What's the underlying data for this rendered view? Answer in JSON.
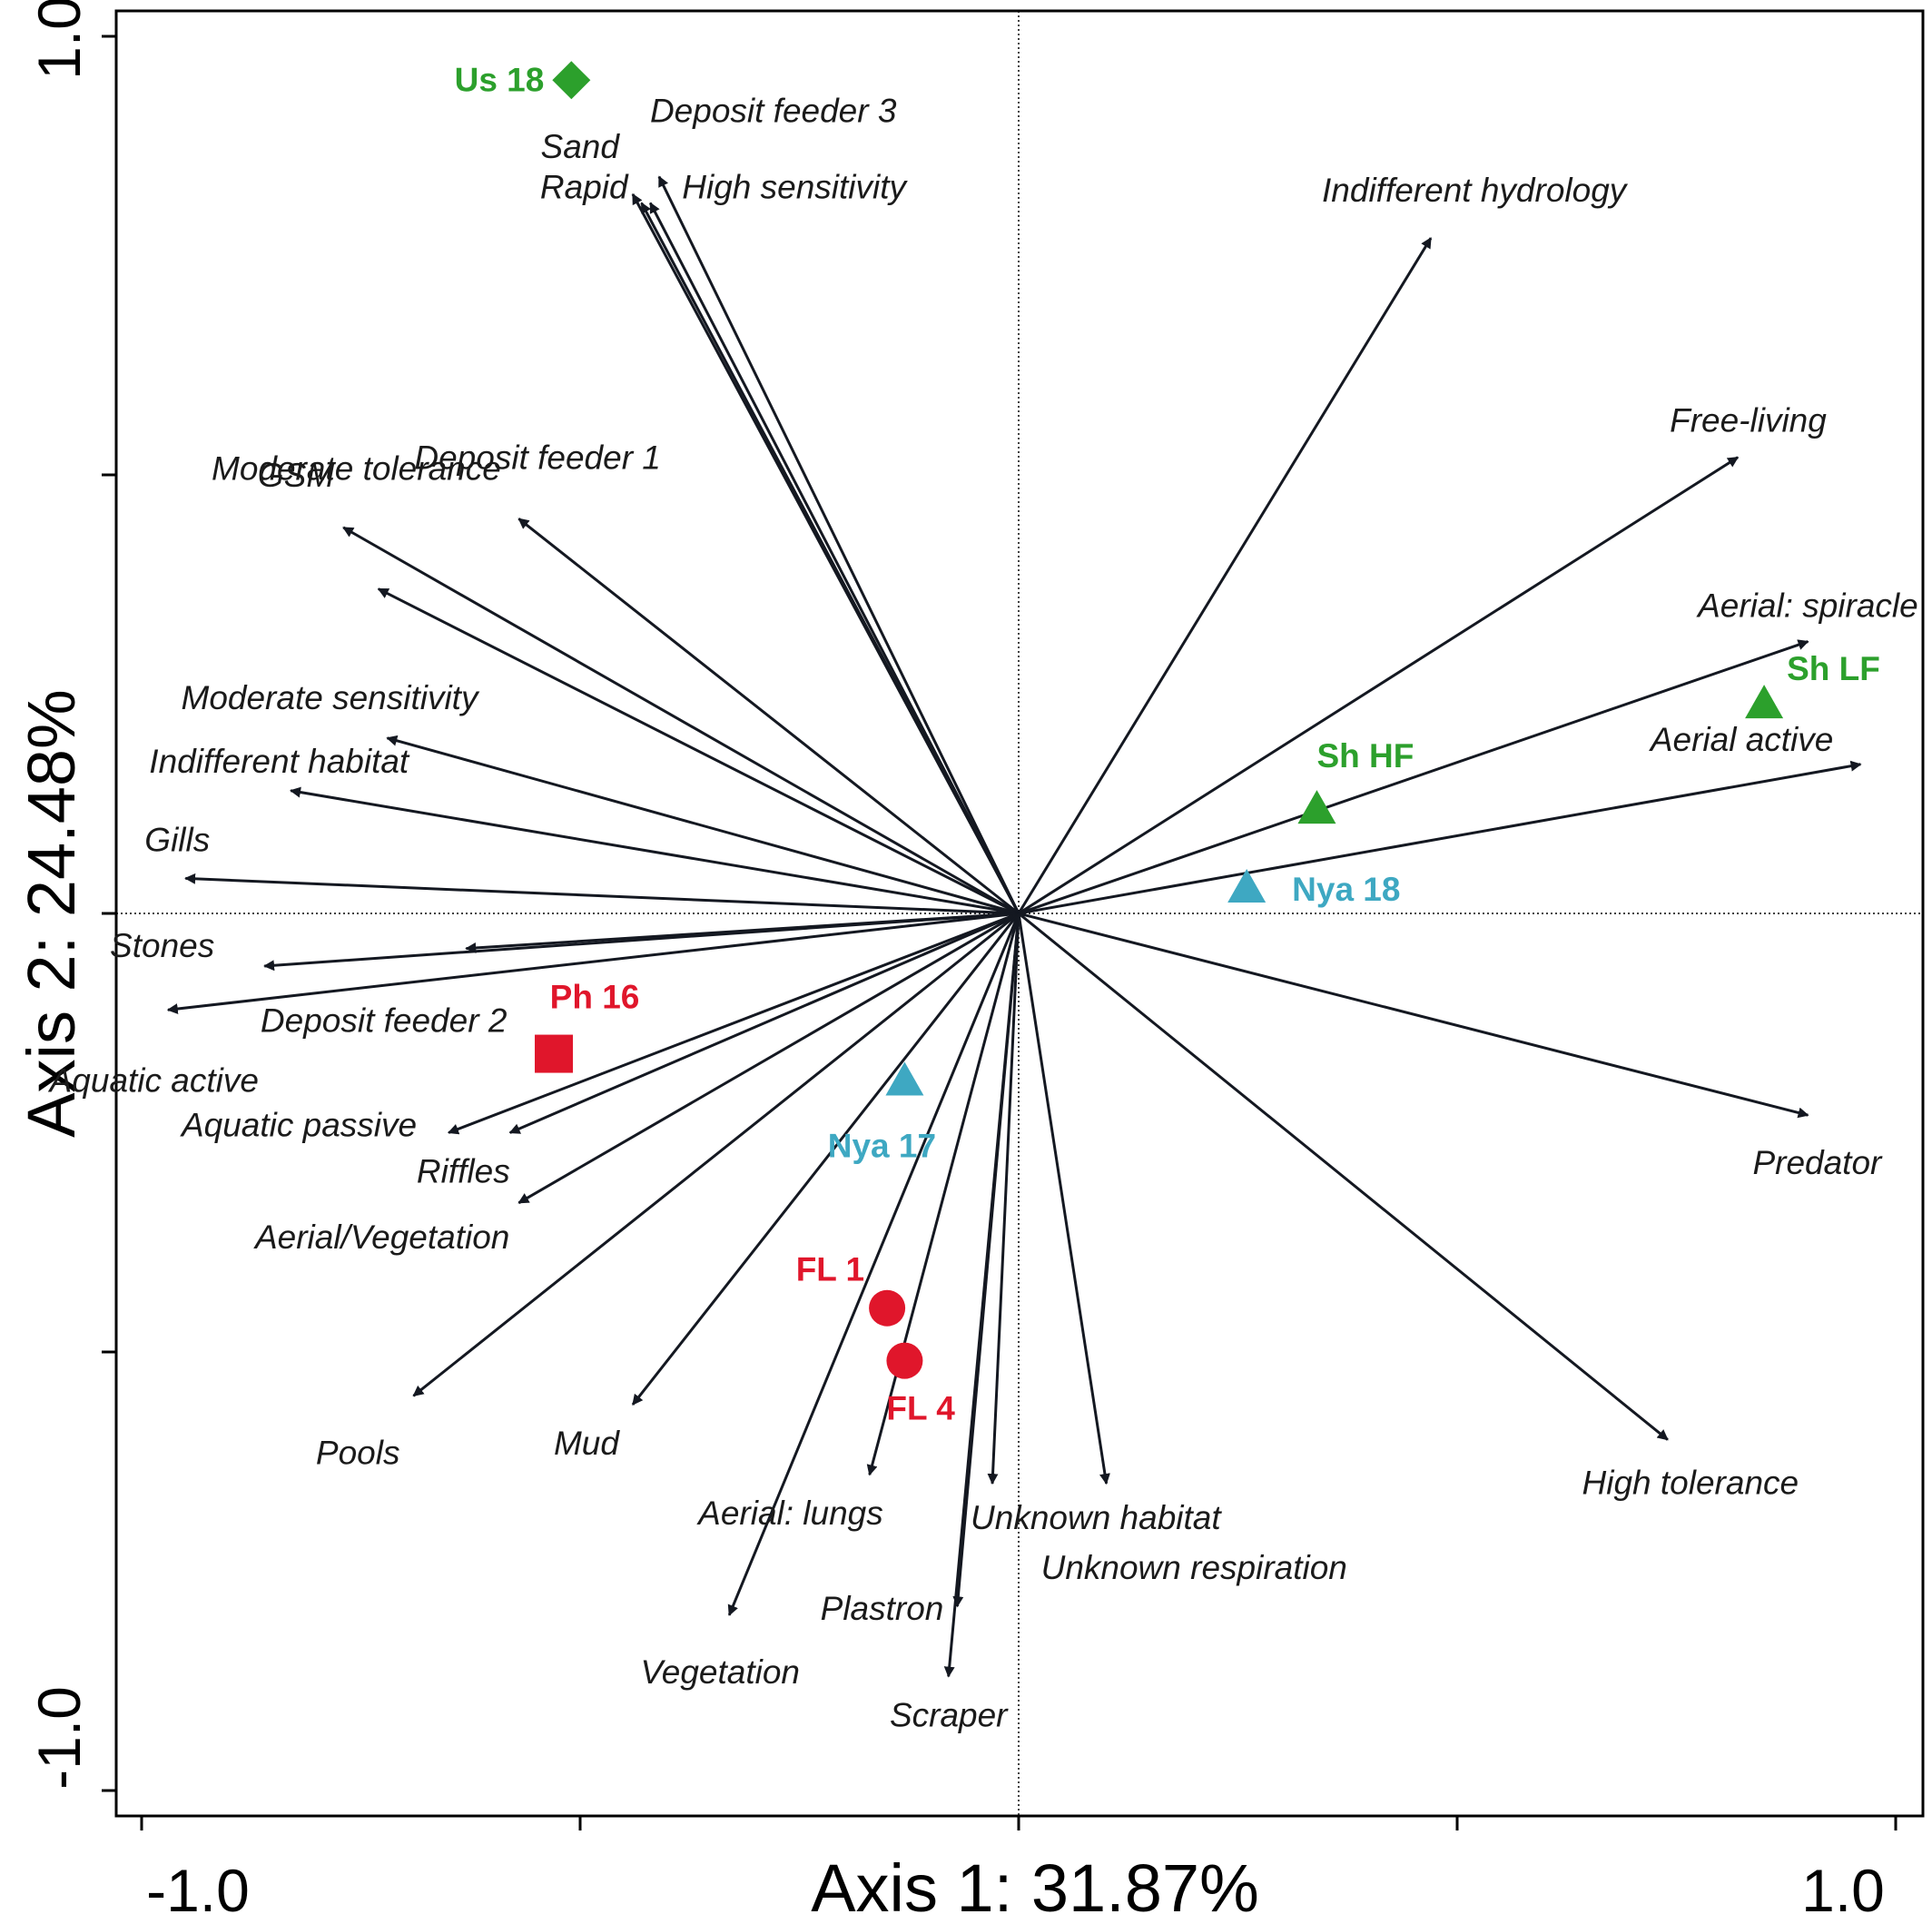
{
  "chart_data": {
    "type": "scatter",
    "subtype": "ordination-biplot",
    "title": "",
    "xlabel": "Axis 1: 31.87%",
    "ylabel": "Axis 2: 24.48%",
    "xlim": [
      -1.0,
      1.0
    ],
    "ylim": [
      -1.0,
      1.0
    ],
    "x_tick_labels": [
      "-1.0",
      "1.0"
    ],
    "y_tick_labels": [
      "1.0",
      "-1.0"
    ],
    "grid": false,
    "zero_lines": "dotted",
    "colors": {
      "arrow": "#141821",
      "green": "#2ca02c",
      "teal": "#3ea8c2",
      "red": "#e0162b"
    },
    "vectors": [
      {
        "label": "Sand",
        "x": -0.44,
        "y": 0.82
      },
      {
        "label": "Deposit feeder 3",
        "x": -0.41,
        "y": 0.84
      },
      {
        "label": "Rapid",
        "x": -0.43,
        "y": 0.81
      },
      {
        "label": "High sensitivity",
        "x": -0.42,
        "y": 0.81
      },
      {
        "label": "Indifferent hydrology",
        "x": 0.47,
        "y": 0.77
      },
      {
        "label": "Free-living",
        "x": 0.82,
        "y": 0.52
      },
      {
        "label": "GSM",
        "x": -0.77,
        "y": 0.44
      },
      {
        "label": "Deposit feeder 1",
        "x": -0.57,
        "y": 0.45
      },
      {
        "label": "Moderate tolerance",
        "x": -0.73,
        "y": 0.37
      },
      {
        "label": "Aerial: spiracle",
        "x": 0.9,
        "y": 0.31
      },
      {
        "label": "Aerial active",
        "x": 0.96,
        "y": 0.17
      },
      {
        "label": "Moderate sensitivity",
        "x": -0.72,
        "y": 0.2
      },
      {
        "label": "Indifferent habitat",
        "x": -0.83,
        "y": 0.14
      },
      {
        "label": "Gills",
        "x": -0.95,
        "y": 0.04
      },
      {
        "label": "Stones",
        "x": -0.86,
        "y": -0.06
      },
      {
        "label": "Deposit feeder 2",
        "x": -0.63,
        "y": -0.04
      },
      {
        "label": "Aquatic active",
        "x": -0.97,
        "y": -0.11
      },
      {
        "label": "Aquatic passive",
        "x": -0.65,
        "y": -0.25
      },
      {
        "label": "Riffles",
        "x": -0.58,
        "y": -0.25
      },
      {
        "label": "Aerial/Vegetation",
        "x": -0.57,
        "y": -0.33
      },
      {
        "label": "Predator",
        "x": 0.9,
        "y": -0.23
      },
      {
        "label": "Pools",
        "x": -0.69,
        "y": -0.55
      },
      {
        "label": "Mud",
        "x": -0.44,
        "y": -0.56
      },
      {
        "label": "High tolerance",
        "x": 0.74,
        "y": -0.6
      },
      {
        "label": "Aerial: lungs",
        "x": -0.17,
        "y": -0.64
      },
      {
        "label": "Unknown habitat",
        "x": -0.03,
        "y": -0.65
      },
      {
        "label": "Unknown respiration",
        "x": 0.1,
        "y": -0.65
      },
      {
        "label": "Plastron",
        "x": -0.07,
        "y": -0.79
      },
      {
        "label": "Vegetation",
        "x": -0.33,
        "y": -0.8
      },
      {
        "label": "Scraper",
        "x": -0.08,
        "y": -0.87
      }
    ],
    "sites": [
      {
        "label": "Us 18",
        "x": -0.51,
        "y": 0.95,
        "shape": "diamond",
        "color": "green"
      },
      {
        "label": "Sh LF",
        "x": 0.85,
        "y": 0.24,
        "shape": "triangle",
        "color": "green"
      },
      {
        "label": "Sh HF",
        "x": 0.34,
        "y": 0.12,
        "shape": "triangle",
        "color": "green"
      },
      {
        "label": "Nya 18",
        "x": 0.26,
        "y": 0.03,
        "shape": "triangle",
        "color": "teal"
      },
      {
        "label": "Nya 17",
        "x": -0.13,
        "y": -0.19,
        "shape": "triangle",
        "color": "teal"
      },
      {
        "label": "Ph 16",
        "x": -0.53,
        "y": -0.16,
        "shape": "square",
        "color": "red"
      },
      {
        "label": "FL 1",
        "x": -0.15,
        "y": -0.45,
        "shape": "circle",
        "color": "red"
      },
      {
        "label": "FL 4",
        "x": -0.13,
        "y": -0.51,
        "shape": "circle",
        "color": "red"
      }
    ]
  }
}
